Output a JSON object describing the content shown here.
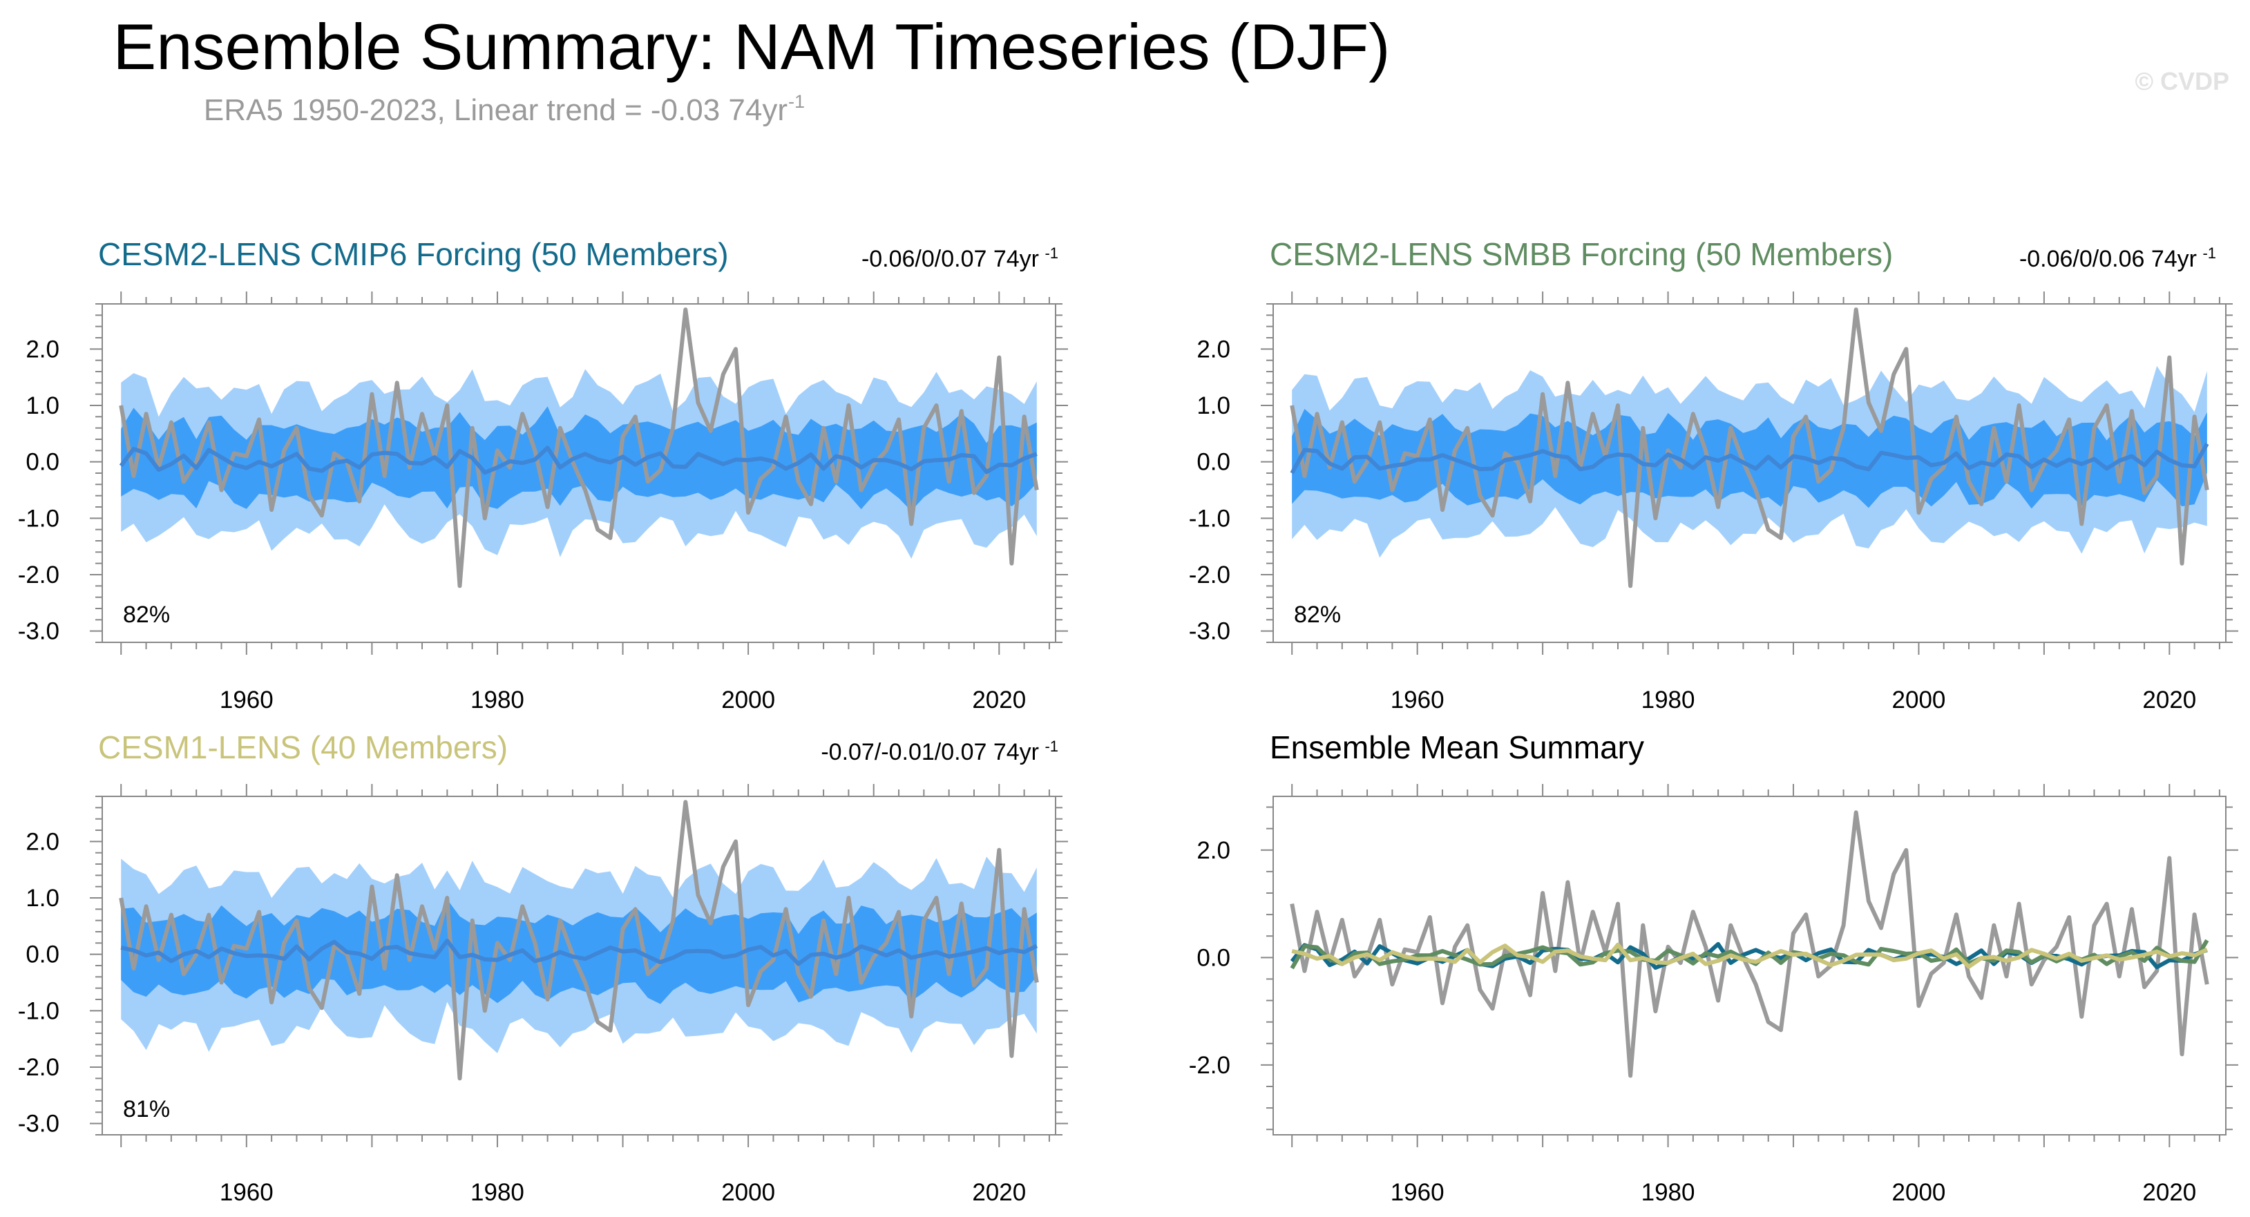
{
  "title": "Ensemble Summary: NAM Timeseries (DJF)",
  "subtitle": {
    "text": "ERA5 1950-2023, Linear trend = -0.03 74yr",
    "superscript": "-1"
  },
  "watermark": "© CVDP",
  "colors": {
    "observed": "#9a9a9a",
    "band_outer": "#a3d0fb",
    "band_inner": "#3d9ef8",
    "ens_mean": "#3f86d6",
    "cesm2_cmip6": "#136b8c",
    "cesm2_smbb": "#5f8c60",
    "cesm1": "#c9c47a",
    "summary_title": "#000000"
  },
  "chart_data": [
    {
      "type": "area",
      "id": "cesm2_cmip6",
      "title": "CESM2-LENS CMIP6 Forcing (50 Members)",
      "trend_label": "-0.06/0/0.07 74yr",
      "trend_sup": "-1",
      "percent_label": "82%",
      "x": [
        1950,
        2023
      ],
      "xticks": [
        1960,
        1980,
        2000,
        2020
      ],
      "ylim": [
        -3.2,
        2.8
      ],
      "yticks": [
        2.0,
        1.0,
        0.0,
        -1.0,
        -2.0,
        -3.0
      ],
      "ytick_labels": [
        "2.0",
        "1.0",
        "0.0",
        "-1.0",
        "-2.0",
        "-3.0"
      ],
      "outer_width": 1.25,
      "inner_width": 0.62,
      "ensemble_mean": [
        -0.07,
        0.23,
        0.15,
        -0.14,
        -0.04,
        0.11,
        -0.11,
        0.21,
        0.08,
        -0.05,
        -0.11,
        0.0,
        -0.08,
        0.03,
        0.14,
        -0.12,
        -0.16,
        -0.02,
        0.02,
        -0.1,
        0.13,
        0.16,
        0.14,
        -0.02,
        -0.03,
        0.08,
        -0.09,
        0.19,
        0.07,
        -0.19,
        -0.1,
        0.01,
        -0.02,
        0.04,
        0.25,
        -0.1,
        0.05,
        0.14,
        0.04,
        -0.01,
        0.09,
        -0.05,
        0.08,
        0.15,
        -0.08,
        -0.09,
        0.14,
        0.05,
        -0.04,
        0.04,
        0.03,
        0.06,
        0.01,
        -0.12,
        -0.02,
        0.13,
        -0.12,
        0.1,
        0.05,
        -0.1,
        0.03,
        0.03,
        -0.03,
        -0.13,
        0.01,
        0.03,
        0.04,
        0.12,
        0.1,
        -0.18,
        -0.05,
        -0.06,
        0.06,
        0.14
      ],
      "observed": [
        1.0,
        -0.25,
        0.85,
        -0.1,
        0.7,
        -0.35,
        0.0,
        0.7,
        -0.5,
        0.15,
        0.1,
        0.75,
        -0.85,
        0.2,
        0.6,
        -0.6,
        -0.95,
        0.15,
        0.0,
        -0.7,
        1.2,
        -0.25,
        1.4,
        -0.1,
        0.85,
        0.1,
        1.0,
        -2.2,
        0.6,
        -1.0,
        0.2,
        -0.1,
        0.85,
        0.2,
        -0.8,
        0.6,
        0.0,
        -0.5,
        -1.2,
        -1.35,
        0.45,
        0.8,
        -0.35,
        -0.15,
        0.6,
        2.7,
        1.05,
        0.55,
        1.55,
        2.0,
        -0.9,
        -0.3,
        -0.1,
        0.8,
        -0.35,
        -0.75,
        0.6,
        -0.35,
        1.0,
        -0.5,
        -0.05,
        0.2,
        0.75,
        -1.1,
        0.6,
        1.0,
        -0.35,
        0.9,
        -0.55,
        -0.25,
        1.85,
        -1.8,
        0.8,
        -0.5
      ],
      "title_color_key": "cesm2_cmip6"
    },
    {
      "type": "area",
      "id": "cesm2_smbb",
      "title": "CESM2-LENS SMBB Forcing (50 Members)",
      "trend_label": "-0.06/0/0.06 74yr",
      "trend_sup": "-1",
      "percent_label": "82%",
      "x": [
        1950,
        2023
      ],
      "xticks": [
        1960,
        1980,
        2000,
        2020
      ],
      "ylim": [
        -3.2,
        2.8
      ],
      "yticks": [
        2.0,
        1.0,
        0.0,
        -1.0,
        -2.0,
        -3.0
      ],
      "ytick_labels": [
        "2.0",
        "1.0",
        "0.0",
        "-1.0",
        "-2.0",
        "-3.0"
      ],
      "outer_width": 1.25,
      "inner_width": 0.62,
      "ensemble_mean": [
        -0.2,
        0.21,
        0.19,
        -0.03,
        -0.12,
        0.08,
        0.09,
        -0.12,
        -0.07,
        -0.04,
        0.04,
        0.04,
        0.12,
        0.04,
        -0.04,
        -0.13,
        -0.12,
        0.03,
        0.07,
        0.12,
        0.19,
        0.11,
        0.08,
        -0.13,
        -0.09,
        0.08,
        0.13,
        0.11,
        -0.04,
        -0.06,
        0.13,
        0.04,
        -0.11,
        0.08,
        0.02,
        0.11,
        -0.01,
        -0.12,
        0.09,
        -0.1,
        0.1,
        0.06,
        -0.02,
        0.07,
        0.04,
        -0.08,
        -0.13,
        0.16,
        0.12,
        0.07,
        0.08,
        -0.06,
        -0.02,
        0.15,
        -0.11,
        -0.01,
        -0.06,
        0.13,
        0.1,
        -0.09,
        0.04,
        -0.07,
        0.04,
        -0.04,
        0.05,
        -0.12,
        0.02,
        0.1,
        -0.06,
        0.18,
        0.03,
        -0.06,
        -0.08,
        0.32
      ],
      "observed": [
        1.0,
        -0.25,
        0.85,
        -0.1,
        0.7,
        -0.35,
        0.0,
        0.7,
        -0.5,
        0.15,
        0.1,
        0.75,
        -0.85,
        0.2,
        0.6,
        -0.6,
        -0.95,
        0.15,
        0.0,
        -0.7,
        1.2,
        -0.25,
        1.4,
        -0.1,
        0.85,
        0.1,
        1.0,
        -2.2,
        0.6,
        -1.0,
        0.2,
        -0.1,
        0.85,
        0.2,
        -0.8,
        0.6,
        0.0,
        -0.5,
        -1.2,
        -1.35,
        0.45,
        0.8,
        -0.35,
        -0.15,
        0.6,
        2.7,
        1.05,
        0.55,
        1.55,
        2.0,
        -0.9,
        -0.3,
        -0.1,
        0.8,
        -0.35,
        -0.75,
        0.6,
        -0.35,
        1.0,
        -0.5,
        -0.05,
        0.2,
        0.75,
        -1.1,
        0.6,
        1.0,
        -0.35,
        0.9,
        -0.55,
        -0.25,
        1.85,
        -1.8,
        0.8,
        -0.5
      ],
      "title_color_key": "cesm2_smbb"
    },
    {
      "type": "area",
      "id": "cesm1",
      "title": "CESM1-LENS (40 Members)",
      "trend_label": "-0.07/-0.01/0.07 74yr",
      "trend_sup": "-1",
      "percent_label": "81%",
      "x": [
        1950,
        2023
      ],
      "xticks": [
        1960,
        1980,
        2000,
        2020
      ],
      "ylim": [
        -3.2,
        2.8
      ],
      "yticks": [
        2.0,
        1.0,
        0.0,
        -1.0,
        -2.0,
        -3.0
      ],
      "ytick_labels": [
        "2.0",
        "1.0",
        "0.0",
        "-1.0",
        "-2.0",
        "-3.0"
      ],
      "outer_width": 1.35,
      "inner_width": 0.65,
      "ensemble_mean": [
        0.12,
        0.07,
        -0.02,
        0.03,
        -0.12,
        0.0,
        0.06,
        -0.05,
        0.1,
        0.02,
        -0.03,
        -0.02,
        -0.03,
        -0.08,
        0.14,
        -0.09,
        0.1,
        0.22,
        0.04,
        0.01,
        -0.08,
        0.11,
        0.13,
        0.02,
        -0.02,
        -0.05,
        0.24,
        -0.05,
        -0.01,
        -0.09,
        -0.1,
        -0.01,
        0.07,
        -0.12,
        -0.06,
        0.04,
        -0.04,
        -0.08,
        0.02,
        0.12,
        0.05,
        0.07,
        -0.04,
        -0.14,
        -0.06,
        0.05,
        0.06,
        0.05,
        -0.05,
        -0.02,
        0.08,
        0.13,
        -0.02,
        0.06,
        -0.17,
        -0.01,
        0.01,
        -0.06,
        0.0,
        0.14,
        0.07,
        -0.02,
        0.07,
        -0.06,
        -0.01,
        0.04,
        -0.04,
        0.0,
        0.05,
        0.11,
        0.02,
        0.08,
        0.04,
        0.15
      ],
      "observed": [
        1.0,
        -0.25,
        0.85,
        -0.1,
        0.7,
        -0.35,
        0.0,
        0.7,
        -0.5,
        0.15,
        0.1,
        0.75,
        -0.85,
        0.2,
        0.6,
        -0.6,
        -0.95,
        0.15,
        0.0,
        -0.7,
        1.2,
        -0.25,
        1.4,
        -0.1,
        0.85,
        0.1,
        1.0,
        -2.2,
        0.6,
        -1.0,
        0.2,
        -0.1,
        0.85,
        0.2,
        -0.8,
        0.6,
        0.0,
        -0.5,
        -1.2,
        -1.35,
        0.45,
        0.8,
        -0.35,
        -0.15,
        0.6,
        2.7,
        1.05,
        0.55,
        1.55,
        2.0,
        -0.9,
        -0.3,
        -0.1,
        0.8,
        -0.35,
        -0.75,
        0.6,
        -0.35,
        1.0,
        -0.5,
        -0.05,
        0.2,
        0.75,
        -1.1,
        0.6,
        1.0,
        -0.35,
        0.9,
        -0.55,
        -0.25,
        1.85,
        -1.8,
        0.8,
        -0.5
      ],
      "title_color_key": "cesm1"
    },
    {
      "type": "line",
      "id": "summary",
      "title": "Ensemble Mean Summary",
      "x": [
        1950,
        2023
      ],
      "xticks": [
        1960,
        1980,
        2000,
        2020
      ],
      "ylim": [
        -3.3,
        3.0
      ],
      "yticks": [
        2.0,
        0.0,
        -2.0
      ],
      "ytick_labels": [
        "2.0",
        "0.0",
        "-2.0"
      ],
      "series": [
        {
          "name": "ERA5",
          "color_key": "observed",
          "source": "observed"
        },
        {
          "name": "CESM2-LENS CMIP6 Forcing",
          "color_key": "cesm2_cmip6",
          "source": "cesm2_cmip6"
        },
        {
          "name": "CESM2-LENS SMBB Forcing",
          "color_key": "cesm2_smbb",
          "source": "cesm2_smbb"
        },
        {
          "name": "CESM1-LENS",
          "color_key": "cesm1",
          "source": "cesm1"
        }
      ],
      "title_color_key": "summary_title"
    }
  ]
}
